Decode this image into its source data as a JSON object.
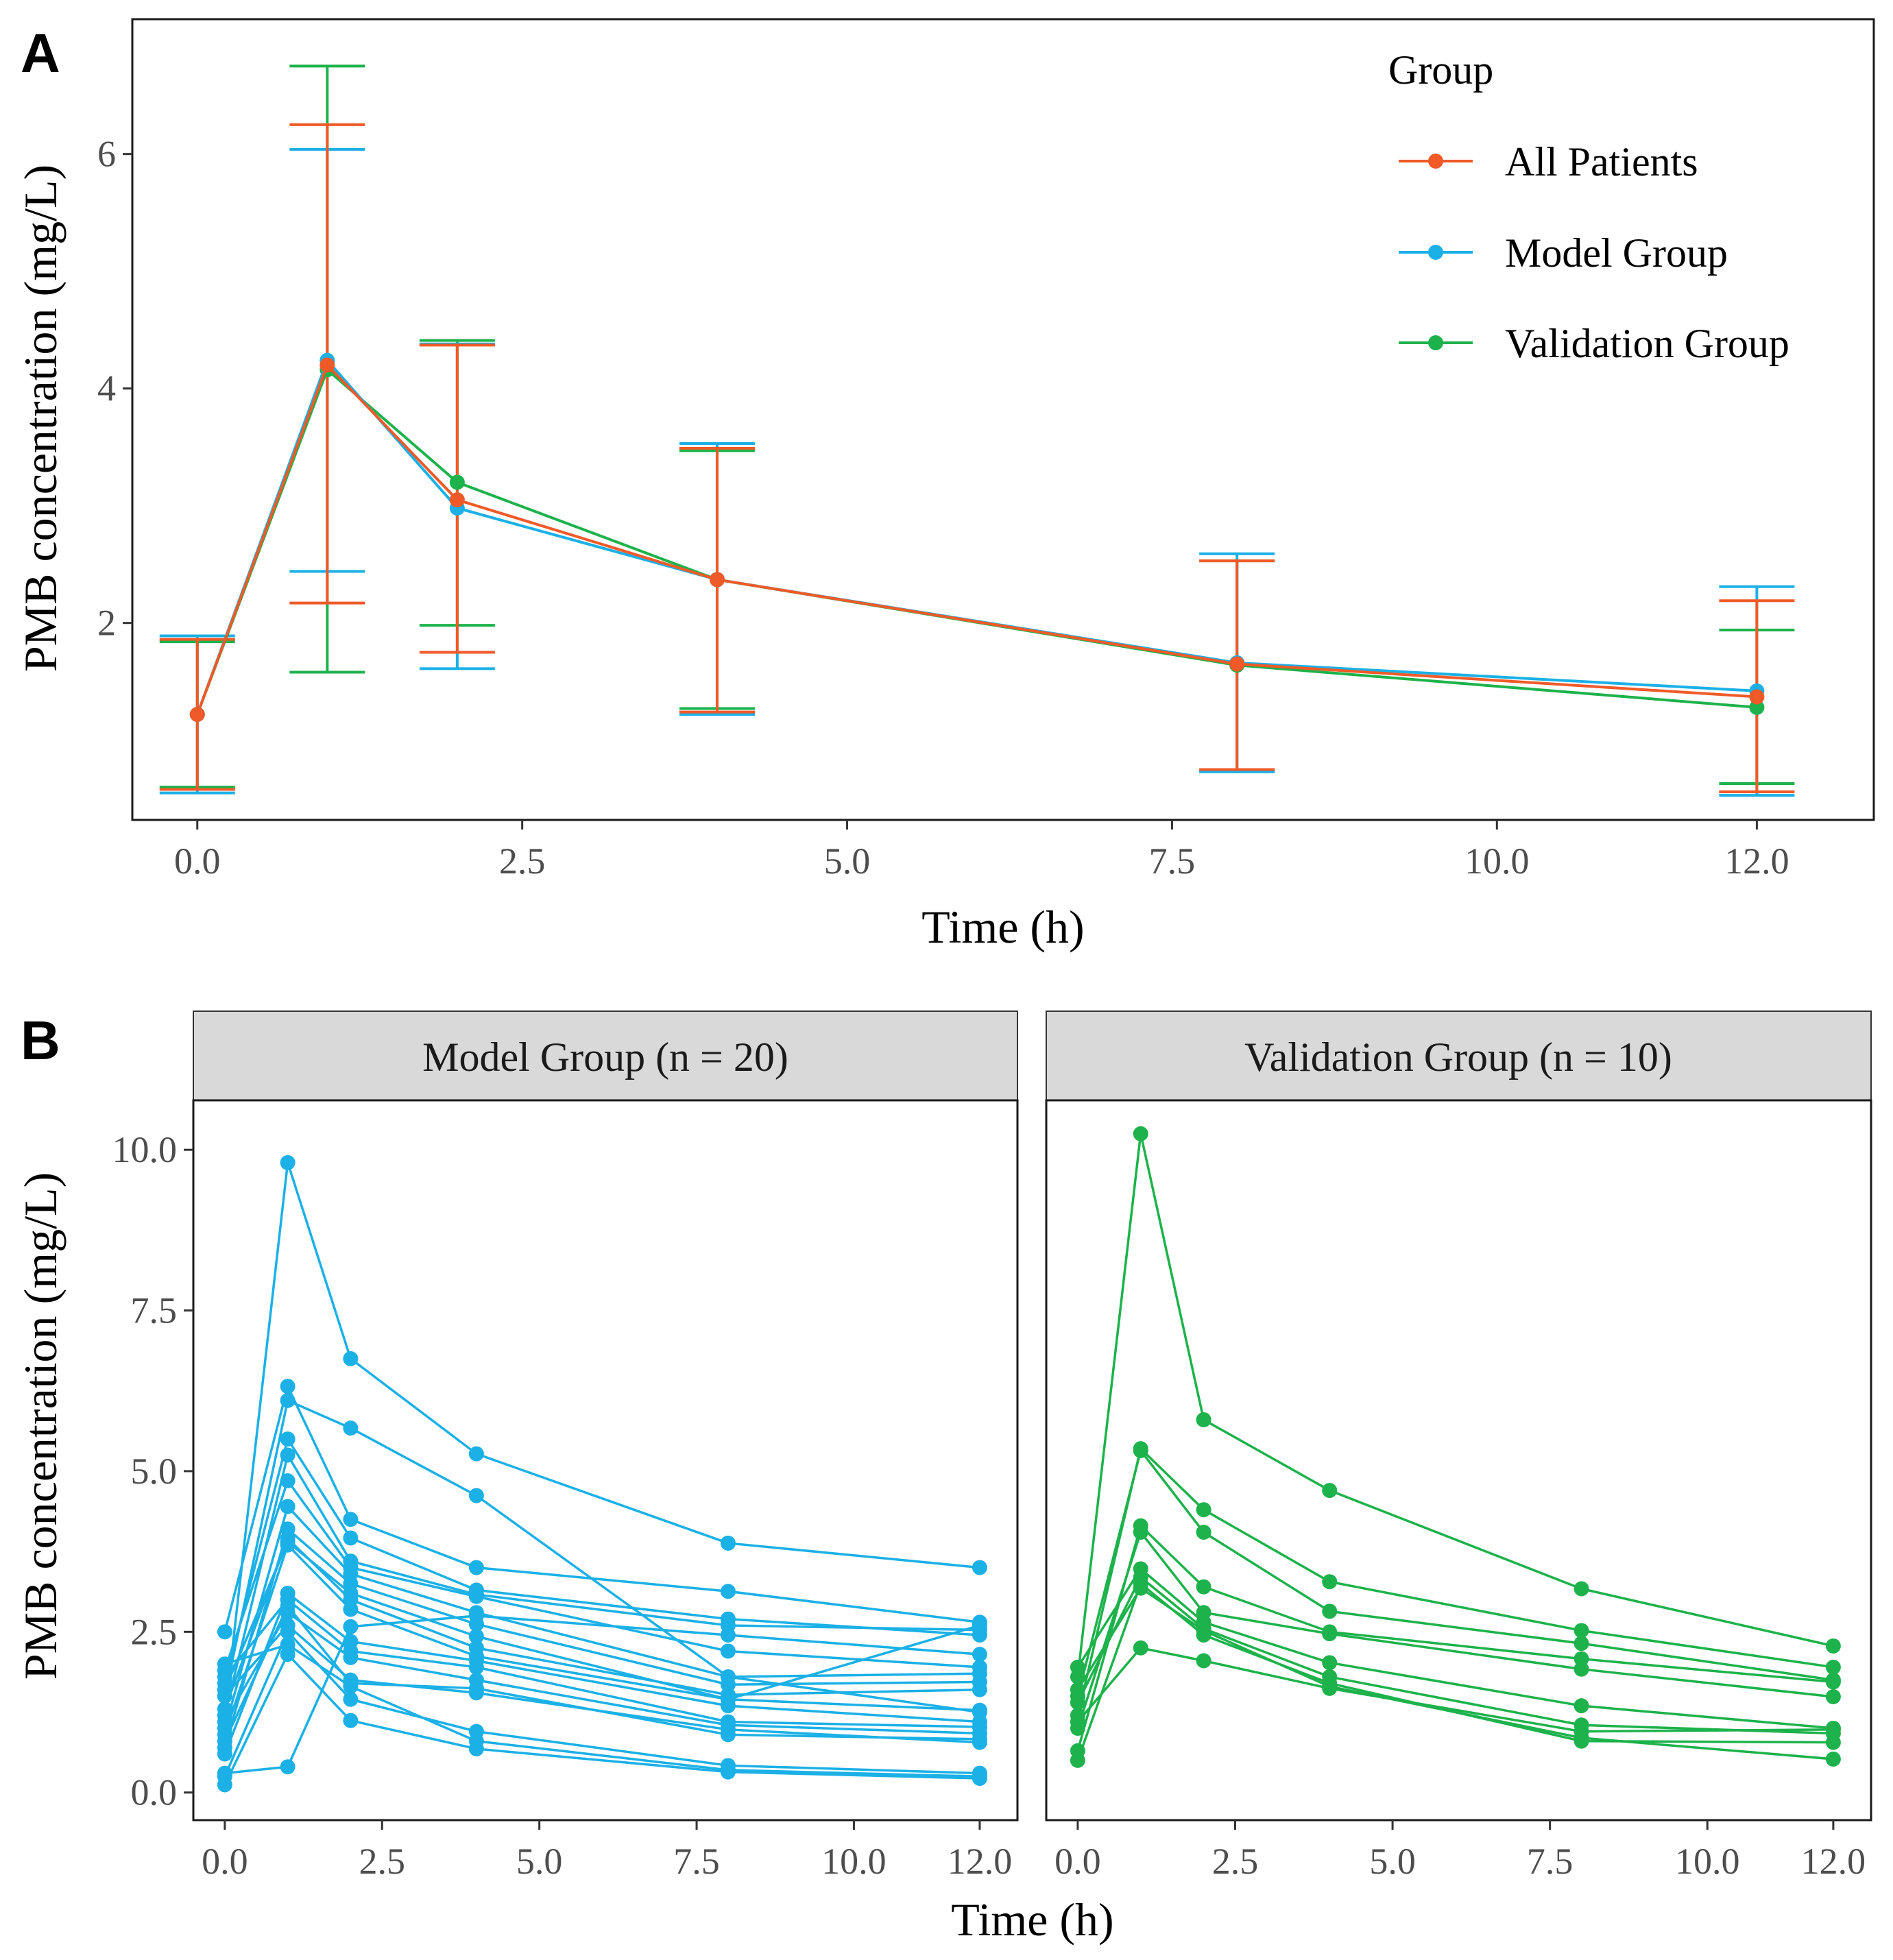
{
  "figure": {
    "panel_a_label": "A",
    "panel_b_label": "B"
  },
  "colors": {
    "all": "#F05A28",
    "model": "#1BB0E6",
    "validation": "#1DB24B",
    "strip_bg": "#D9D9D9"
  },
  "chart_data": [
    {
      "type": "line",
      "panel": "A",
      "xlabel": "Time (h)",
      "ylabel": "PMB concentration (mg/L)",
      "xlim": [
        -0.5,
        12.9
      ],
      "ylim": [
        0.32,
        7.15
      ],
      "xticks": [
        0,
        2.5,
        5,
        7.5,
        10,
        12
      ],
      "xtick_labels": [
        "0.0",
        "2.5",
        "5.0",
        "7.5",
        "10.0",
        "12.0"
      ],
      "yticks": [
        2,
        4,
        6
      ],
      "ytick_labels": [
        "2",
        "4",
        "6"
      ],
      "legend_title": "Group",
      "legend_position": "top-right",
      "x": [
        0,
        1,
        2,
        4,
        8,
        12
      ],
      "series": [
        {
          "name": "All Patients",
          "color_key": "all",
          "values": [
            1.22,
            4.2,
            3.05,
            2.37,
            1.65,
            1.37
          ],
          "err_low": [
            0.58,
            2.17,
            1.75,
            1.24,
            0.75,
            0.56
          ],
          "err_high": [
            1.86,
            6.25,
            4.37,
            3.49,
            2.53,
            2.19
          ]
        },
        {
          "name": "Model Group",
          "color_key": "model",
          "values": [
            1.22,
            4.24,
            2.98,
            2.37,
            1.66,
            1.42
          ],
          "err_low": [
            0.55,
            2.44,
            1.61,
            1.22,
            0.73,
            0.53
          ],
          "err_high": [
            1.89,
            6.04,
            4.38,
            3.53,
            2.59,
            2.31
          ]
        },
        {
          "name": "Validation Group",
          "color_key": "validation",
          "values": [
            1.22,
            4.16,
            3.2,
            2.37,
            1.64,
            1.28
          ],
          "err_low": [
            0.6,
            1.58,
            1.98,
            1.27,
            0.74,
            0.63
          ],
          "err_high": [
            1.84,
            6.75,
            4.41,
            3.47,
            2.53,
            1.94
          ]
        }
      ]
    },
    {
      "type": "line",
      "panel": "B",
      "xlabel": "Time (h)",
      "ylabel": "PMB concentration (mg/L)",
      "xlim": [
        -0.5,
        12.6
      ],
      "ylim": [
        -0.43,
        10.77
      ],
      "xticks": [
        0,
        2.5,
        5,
        7.5,
        10,
        12
      ],
      "xtick_labels": [
        "0.0",
        "2.5",
        "5.0",
        "7.5",
        "10.0",
        "12.0"
      ],
      "yticks": [
        0,
        2.5,
        5,
        7.5,
        10
      ],
      "ytick_labels": [
        "0.0",
        "2.5",
        "5.0",
        "7.5",
        "10.0"
      ],
      "x": [
        0,
        1,
        2,
        4,
        8,
        12
      ],
      "facets": [
        {
          "title": "Model Group (n = 20)",
          "color_key": "model",
          "subjects": [
            [
              1.2,
              9.8,
              6.75,
              5.27,
              3.88,
              3.5
            ],
            [
              1.5,
              6.1,
              5.67,
              4.62,
              1.8,
              1.25
            ],
            [
              2.5,
              6.32,
              4.25,
              3.5,
              3.13,
              2.65
            ],
            [
              1.7,
              5.5,
              3.96,
              3.15,
              2.7,
              2.45
            ],
            [
              1.2,
              5.25,
              3.6,
              3.08,
              2.6,
              2.53
            ],
            [
              0.3,
              0.4,
              2.58,
              2.75,
              2.45,
              2.15
            ],
            [
              1.9,
              4.85,
              3.5,
              3.05,
              2.2,
              1.95
            ],
            [
              1.0,
              4.45,
              3.4,
              2.8,
              1.8,
              1.85
            ],
            [
              0.7,
              4.1,
              3.25,
              2.62,
              1.68,
              1.72
            ],
            [
              1.6,
              3.9,
              3.1,
              2.43,
              1.45,
              2.6
            ],
            [
              1.3,
              3.95,
              3.0,
              2.25,
              1.52,
              1.6
            ],
            [
              0.9,
              3.85,
              2.85,
              2.12,
              1.45,
              1.28
            ],
            [
              0.6,
              3.1,
              2.35,
              2.05,
              1.35,
              1.1
            ],
            [
              1.8,
              3.0,
              2.2,
              1.95,
              1.1,
              1.02
            ],
            [
              1.1,
              2.8,
              2.1,
              1.75,
              1.05,
              0.92
            ],
            [
              0.8,
              2.9,
              1.7,
              1.62,
              0.9,
              0.83
            ],
            [
              1.5,
              2.6,
              1.75,
              1.55,
              0.98,
              0.78
            ],
            [
              0.25,
              2.5,
              1.45,
              0.95,
              0.42,
              0.3
            ],
            [
              0.12,
              2.15,
              1.12,
              0.68,
              0.32,
              0.22
            ],
            [
              2.0,
              2.3,
              1.65,
              0.8,
              0.35,
              0.25
            ]
          ]
        },
        {
          "title": "Validation Group (n = 10)",
          "color_key": "validation",
          "subjects": [
            [
              1.8,
              10.25,
              5.8,
              4.7,
              3.17,
              2.28
            ],
            [
              1.2,
              5.35,
              4.4,
              3.28,
              2.52,
              1.95
            ],
            [
              1.5,
              5.32,
              4.05,
              2.82,
              2.32,
              1.75
            ],
            [
              0.65,
              4.15,
              3.2,
              2.5,
              2.08,
              1.72
            ],
            [
              1.0,
              4.05,
              2.8,
              2.47,
              1.92,
              1.49
            ],
            [
              1.95,
              3.48,
              2.65,
              2.02,
              1.35,
              1.0
            ],
            [
              1.4,
              3.35,
              2.55,
              1.8,
              1.05,
              0.92
            ],
            [
              0.5,
              3.25,
              2.45,
              1.7,
              0.8,
              0.78
            ],
            [
              1.6,
              3.18,
              2.52,
              1.65,
              0.85,
              0.52
            ],
            [
              1.1,
              2.25,
              2.05,
              1.62,
              0.95,
              0.98
            ]
          ]
        }
      ]
    }
  ]
}
